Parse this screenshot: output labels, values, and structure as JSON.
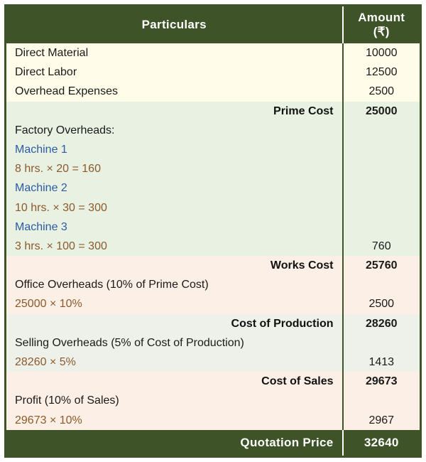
{
  "type": "table",
  "columns": [
    "Particulars",
    "Amount (₹)"
  ],
  "colors": {
    "header_bg": "#3e5327",
    "header_fg": "#ffffff",
    "border": "#3e5327",
    "section_a_bg": "#fffde9",
    "section_b_bg": "#e9f1e3",
    "section_c_bg": "#fcefe6",
    "section_d_bg": "#eef1ea",
    "text_dark": "#1a1a1a",
    "text_blue": "#2b5ca3",
    "text_brown": "#8b5a2b"
  },
  "direct": {
    "material_label": "Direct Material",
    "material_amount": "10000",
    "labor_label": "Direct Labor",
    "labor_amount": "12500",
    "overhead_label": "Overhead Expenses",
    "overhead_amount": "2500"
  },
  "prime_cost": {
    "label": "Prime Cost",
    "amount": "25000"
  },
  "factory": {
    "heading": "Factory Overheads:",
    "m1_label": "Machine 1",
    "m1_calc": "8 hrs. × 20 = 160",
    "m2_label": "Machine 2",
    "m2_calc": "10 hrs. × 30 = 300",
    "m3_label": "Machine 3",
    "m3_calc": "3 hrs. × 100 = 300",
    "total": "760"
  },
  "works_cost": {
    "label": "Works Cost",
    "amount": "25760"
  },
  "office": {
    "label": "Office Overheads (10% of Prime Cost)",
    "calc": "25000 × 10%",
    "amount": "2500"
  },
  "cost_of_production": {
    "label": "Cost of Production",
    "amount": "28260"
  },
  "selling": {
    "label": "Selling Overheads (5% of Cost of Production)",
    "calc": "28260 × 5%",
    "amount": "1413"
  },
  "cost_of_sales": {
    "label": "Cost of Sales",
    "amount": "29673"
  },
  "profit": {
    "label": "Profit (10% of Sales)",
    "calc": "29673 × 10%",
    "amount": "2967"
  },
  "quotation": {
    "label": "Quotation Price",
    "amount": "32640"
  }
}
